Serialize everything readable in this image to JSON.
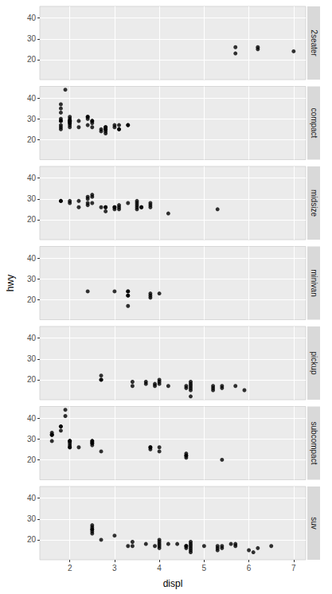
{
  "chart_data": {
    "type": "scatter",
    "x_label": "displ",
    "y_label": "hwy",
    "xlim": [
      1.33,
      7.27
    ],
    "xticks": [
      2,
      3,
      4,
      5,
      6,
      7
    ],
    "ylim": [
      10.4,
      45.6
    ],
    "yticks": [
      20,
      30,
      40
    ],
    "grid": true,
    "marker": "circle",
    "series": [
      {
        "name": "2seater",
        "color": "#000000",
        "x": [
          5.7,
          5.7,
          6.2,
          6.2,
          7.0
        ],
        "values": [
          26,
          23,
          26,
          25,
          24
        ]
      },
      {
        "name": "compact",
        "color": "#000000",
        "x": [
          1.8,
          1.8,
          2.0,
          2.0,
          2.8,
          2.8,
          3.1,
          1.8,
          1.8,
          2.0,
          2.0,
          2.8,
          2.8,
          3.1,
          3.1,
          1.8,
          1.8,
          1.8,
          1.8,
          1.8,
          2.2,
          2.2,
          2.4,
          2.4,
          3.0,
          3.0,
          3.3,
          3.3,
          2.0,
          2.0,
          2.0,
          2.0,
          2.8,
          1.9,
          2.0,
          2.0,
          2.0,
          2.0,
          2.5,
          2.5,
          2.8,
          2.4,
          2.4,
          2.5,
          2.5,
          2.7,
          2.7
        ],
        "values": [
          29,
          29,
          31,
          30,
          26,
          26,
          27,
          26,
          25,
          28,
          27,
          25,
          25,
          25,
          25,
          30,
          27,
          33,
          35,
          37,
          26,
          29,
          31,
          31,
          26,
          27,
          27,
          27,
          29,
          29,
          28,
          29,
          24,
          44,
          29,
          26,
          29,
          29,
          29,
          29,
          23,
          27,
          30,
          28,
          26,
          24,
          25
        ]
      },
      {
        "name": "midsize",
        "color": "#000000",
        "x": [
          1.8,
          1.8,
          2.0,
          2.0,
          2.2,
          2.2,
          2.4,
          2.4,
          2.4,
          2.4,
          2.5,
          2.5,
          2.5,
          2.7,
          2.8,
          2.8,
          2.8,
          3.0,
          3.0,
          3.0,
          3.1,
          3.1,
          3.1,
          3.3,
          3.5,
          3.5,
          3.5,
          3.5,
          3.5,
          3.6,
          3.6,
          3.8,
          3.8,
          3.8,
          4.2,
          5.3
        ],
        "values": [
          29,
          29,
          28,
          29,
          26,
          29,
          27,
          30,
          28,
          31,
          32,
          31,
          28,
          26,
          26,
          26,
          24,
          26,
          26,
          25,
          26,
          25,
          27,
          28,
          29,
          28,
          27,
          26,
          25,
          26,
          26,
          27,
          26,
          28,
          23,
          25
        ]
      },
      {
        "name": "minivan",
        "color": "#000000",
        "x": [
          2.4,
          3.0,
          3.3,
          3.3,
          3.3,
          3.3,
          3.3,
          3.8,
          3.8,
          3.8,
          4.0
        ],
        "values": [
          24,
          24,
          22,
          22,
          24,
          24,
          17,
          22,
          21,
          23,
          23
        ]
      },
      {
        "name": "pickup",
        "color": "#000000",
        "x": [
          2.7,
          2.7,
          2.7,
          3.4,
          3.4,
          3.7,
          3.7,
          3.9,
          3.9,
          4.0,
          4.0,
          4.2,
          4.6,
          4.7,
          4.7,
          4.7,
          4.7,
          4.7,
          5.2,
          5.2,
          5.2,
          5.4,
          5.4,
          5.7,
          5.9,
          4.7,
          4.0,
          4.6
        ],
        "values": [
          20,
          22,
          20,
          17,
          19,
          18,
          19,
          17,
          18,
          20,
          19,
          17,
          17,
          19,
          17,
          16,
          15,
          12,
          16,
          15,
          17,
          17,
          16,
          17,
          15,
          18,
          18,
          16
        ]
      },
      {
        "name": "subcompact",
        "color": "#000000",
        "x": [
          1.6,
          1.6,
          1.6,
          1.6,
          1.6,
          1.8,
          1.8,
          1.8,
          2.0,
          2.0,
          2.0,
          2.0,
          2.0,
          2.2,
          2.5,
          2.5,
          2.5,
          2.7,
          3.8,
          3.8,
          3.8,
          4.0,
          4.0,
          4.6,
          4.6,
          4.6,
          4.6,
          5.4,
          1.9,
          1.9,
          2.0,
          2.0,
          2.5,
          2.5
        ],
        "values": [
          33,
          32,
          32,
          29,
          32,
          34,
          36,
          36,
          29,
          26,
          27,
          28,
          29,
          26,
          28,
          29,
          27,
          24,
          26,
          25,
          26,
          26,
          24,
          23,
          22,
          21,
          22,
          20,
          44,
          41,
          29,
          26,
          28,
          29
        ]
      },
      {
        "name": "suv",
        "color": "#000000",
        "x": [
          2.5,
          2.5,
          2.5,
          2.5,
          2.5,
          2.5,
          2.7,
          3.0,
          3.4,
          3.4,
          3.7,
          4.0,
          4.0,
          4.0,
          4.0,
          4.0,
          4.2,
          4.6,
          4.6,
          4.6,
          4.7,
          4.7,
          4.7,
          4.7,
          4.7,
          5.0,
          5.3,
          5.3,
          5.3,
          5.4,
          5.4,
          5.6,
          5.7,
          5.7,
          6.0,
          6.1,
          6.2,
          6.5,
          4.4,
          3.3,
          3.9,
          4.7
        ],
        "values": [
          26,
          25,
          27,
          25,
          24,
          23,
          20,
          22,
          17,
          19,
          18,
          17,
          19,
          20,
          16,
          18,
          18,
          17,
          16,
          17,
          19,
          17,
          15,
          14,
          16,
          17,
          17,
          16,
          15,
          16,
          17,
          18,
          17,
          18,
          15,
          14,
          16,
          17,
          18,
          17,
          17,
          18
        ]
      }
    ]
  }
}
